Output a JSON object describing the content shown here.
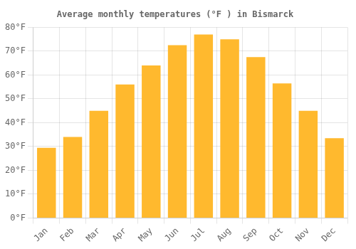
{
  "chart_data": {
    "type": "bar",
    "title": "Average monthly temperatures (°F ) in Bismarck",
    "categories": [
      "Jan",
      "Feb",
      "Mar",
      "Apr",
      "May",
      "Jun",
      "Jul",
      "Aug",
      "Sep",
      "Oct",
      "Nov",
      "Dec"
    ],
    "values": [
      29.5,
      34.0,
      45.0,
      56.0,
      64.0,
      72.5,
      77.0,
      75.0,
      67.5,
      56.5,
      45.0,
      33.5
    ],
    "color": "#FFB92E",
    "ylim": [
      0,
      80
    ],
    "yticks": [
      {
        "value": 0,
        "label": "0°F"
      },
      {
        "value": 10,
        "label": "10°F"
      },
      {
        "value": 20,
        "label": "20°F"
      },
      {
        "value": 30,
        "label": "30°F"
      },
      {
        "value": 40,
        "label": "40°F"
      },
      {
        "value": 50,
        "label": "50°F"
      },
      {
        "value": 60,
        "label": "60°F"
      },
      {
        "value": 70,
        "label": "70°F"
      },
      {
        "value": 80,
        "label": "80°F"
      }
    ],
    "grid": true
  }
}
